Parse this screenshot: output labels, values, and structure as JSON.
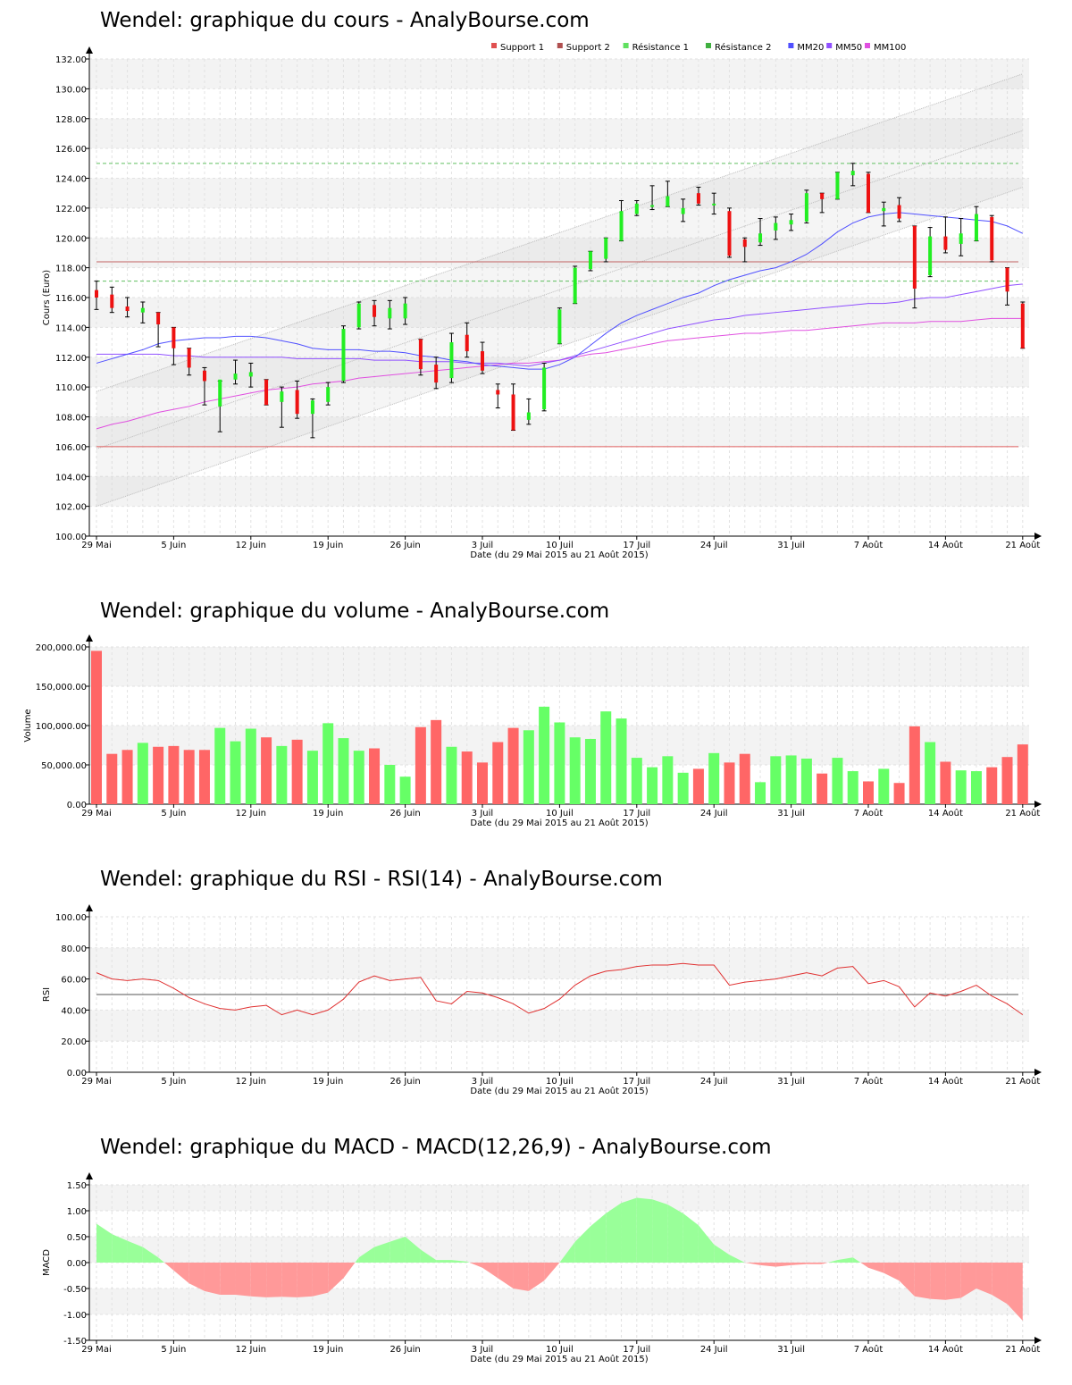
{
  "chart_data": [
    {
      "type": "candlestick",
      "title": "Wendel: graphique du cours - AnalyBourse.com",
      "xlabel": "Date (du 29 Mai 2015 au 21 Août 2015)",
      "ylabel": "Cours (Euro)",
      "ylim": [
        100,
        132
      ],
      "yticks": [
        "100.00",
        "102.00",
        "104.00",
        "106.00",
        "108.00",
        "110.00",
        "112.00",
        "114.00",
        "116.00",
        "118.00",
        "120.00",
        "122.00",
        "124.00",
        "126.00",
        "128.00",
        "130.00",
        "132.00"
      ],
      "xticks": [
        {
          "i": 0,
          "label": "29 Mai"
        },
        {
          "i": 5,
          "label": "5 Juin"
        },
        {
          "i": 10,
          "label": "12 Juin"
        },
        {
          "i": 15,
          "label": "19 Juin"
        },
        {
          "i": 20,
          "label": "26 Juin"
        },
        {
          "i": 25,
          "label": "3 Juil"
        },
        {
          "i": 30,
          "label": "10 Juil"
        },
        {
          "i": 35,
          "label": "17 Juil"
        },
        {
          "i": 40,
          "label": "24 Juil"
        },
        {
          "i": 45,
          "label": "31 Juil"
        },
        {
          "i": 50,
          "label": "7 Août"
        },
        {
          "i": 55,
          "label": "14 Août"
        },
        {
          "i": 60,
          "label": "21 Août"
        }
      ],
      "legend": [
        {
          "name": "Support 1",
          "color": "#e05050"
        },
        {
          "name": "Support 2",
          "color": "#b05050"
        },
        {
          "name": "Résistance 1",
          "color": "#60e060"
        },
        {
          "name": "Résistance 2",
          "color": "#40b040"
        },
        {
          "name": "MM20",
          "color": "#5050ff"
        },
        {
          "name": "MM50",
          "color": "#9050ff"
        },
        {
          "name": "MM100",
          "color": "#e050e0"
        }
      ],
      "levels": {
        "support1": 106.0,
        "support2": 118.4,
        "resistance1": 117.1,
        "resistance2": 125.0
      },
      "channel": {
        "upper": [
          109.7,
          131.0
        ],
        "lower": [
          102.0,
          123.4
        ],
        "mid": [
          105.85,
          127.2
        ]
      },
      "candles": [
        {
          "o": 116.5,
          "h": 117.1,
          "l": 115.2,
          "c": 116.0
        },
        {
          "o": 116.2,
          "h": 116.7,
          "l": 115.0,
          "c": 115.3
        },
        {
          "o": 115.4,
          "h": 116.0,
          "l": 114.7,
          "c": 115.1
        },
        {
          "o": 115.0,
          "h": 115.7,
          "l": 114.3,
          "c": 115.3
        },
        {
          "o": 115.0,
          "h": 115.0,
          "l": 112.7,
          "c": 114.2
        },
        {
          "o": 114.0,
          "h": 114.0,
          "l": 111.5,
          "c": 112.6
        },
        {
          "o": 112.6,
          "h": 112.6,
          "l": 110.8,
          "c": 111.3
        },
        {
          "o": 111.1,
          "h": 111.3,
          "l": 108.8,
          "c": 110.4
        },
        {
          "o": 108.7,
          "h": 110.4,
          "l": 107.0,
          "c": 110.5
        },
        {
          "o": 110.5,
          "h": 111.8,
          "l": 110.2,
          "c": 110.9
        },
        {
          "o": 110.7,
          "h": 111.6,
          "l": 110.0,
          "c": 111.0
        },
        {
          "o": 110.5,
          "h": 110.5,
          "l": 108.8,
          "c": 108.8
        },
        {
          "o": 109.0,
          "h": 110.0,
          "l": 107.3,
          "c": 109.7
        },
        {
          "o": 109.8,
          "h": 110.4,
          "l": 107.9,
          "c": 108.2
        },
        {
          "o": 108.2,
          "h": 109.2,
          "l": 106.6,
          "c": 109.1
        },
        {
          "o": 109.0,
          "h": 110.3,
          "l": 108.8,
          "c": 110.0
        },
        {
          "o": 110.4,
          "h": 114.1,
          "l": 110.3,
          "c": 113.9
        },
        {
          "o": 114.0,
          "h": 115.7,
          "l": 113.9,
          "c": 115.6
        },
        {
          "o": 115.5,
          "h": 115.8,
          "l": 114.1,
          "c": 114.7
        },
        {
          "o": 114.6,
          "h": 115.8,
          "l": 113.9,
          "c": 115.3
        },
        {
          "o": 114.6,
          "h": 116.0,
          "l": 114.2,
          "c": 115.6
        },
        {
          "o": 113.2,
          "h": 113.2,
          "l": 110.8,
          "c": 111.2
        },
        {
          "o": 111.5,
          "h": 112.0,
          "l": 109.9,
          "c": 110.3
        },
        {
          "o": 110.6,
          "h": 113.6,
          "l": 110.3,
          "c": 113.0
        },
        {
          "o": 113.5,
          "h": 114.3,
          "l": 112.0,
          "c": 112.4
        },
        {
          "o": 112.4,
          "h": 113.0,
          "l": 110.9,
          "c": 111.1
        },
        {
          "o": 109.8,
          "h": 110.2,
          "l": 108.6,
          "c": 109.5
        },
        {
          "o": 109.5,
          "h": 110.2,
          "l": 107.1,
          "c": 107.1
        },
        {
          "o": 107.8,
          "h": 109.2,
          "l": 107.5,
          "c": 108.3
        },
        {
          "o": 108.5,
          "h": 111.6,
          "l": 108.4,
          "c": 111.3
        },
        {
          "o": 112.9,
          "h": 115.3,
          "l": 112.9,
          "c": 115.2
        },
        {
          "o": 115.6,
          "h": 118.1,
          "l": 115.6,
          "c": 118.0
        },
        {
          "o": 117.9,
          "h": 119.1,
          "l": 117.8,
          "c": 119.1
        },
        {
          "o": 118.6,
          "h": 120.0,
          "l": 118.4,
          "c": 120.0
        },
        {
          "o": 119.8,
          "h": 122.5,
          "l": 119.8,
          "c": 121.8
        },
        {
          "o": 121.6,
          "h": 122.5,
          "l": 121.5,
          "c": 122.3
        },
        {
          "o": 122.2,
          "h": 123.5,
          "l": 121.9,
          "c": 122.2
        },
        {
          "o": 122.1,
          "h": 123.8,
          "l": 122.1,
          "c": 122.8
        },
        {
          "o": 121.6,
          "h": 122.6,
          "l": 121.1,
          "c": 122.0
        },
        {
          "o": 123.0,
          "h": 123.4,
          "l": 122.2,
          "c": 122.3
        },
        {
          "o": 122.3,
          "h": 123.0,
          "l": 121.6,
          "c": 122.3
        },
        {
          "o": 121.8,
          "h": 122.0,
          "l": 118.7,
          "c": 118.8
        },
        {
          "o": 119.9,
          "h": 120.0,
          "l": 118.4,
          "c": 119.4
        },
        {
          "o": 119.7,
          "h": 121.3,
          "l": 119.5,
          "c": 120.3
        },
        {
          "o": 120.5,
          "h": 121.4,
          "l": 119.9,
          "c": 121.0
        },
        {
          "o": 120.9,
          "h": 121.6,
          "l": 120.5,
          "c": 121.2
        },
        {
          "o": 121.1,
          "h": 123.2,
          "l": 121.0,
          "c": 123.0
        },
        {
          "o": 123.0,
          "h": 123.0,
          "l": 121.7,
          "c": 122.6
        },
        {
          "o": 122.6,
          "h": 124.4,
          "l": 122.6,
          "c": 124.4
        },
        {
          "o": 124.2,
          "h": 125.0,
          "l": 123.5,
          "c": 124.5
        },
        {
          "o": 124.3,
          "h": 124.4,
          "l": 121.7,
          "c": 121.7
        },
        {
          "o": 121.8,
          "h": 122.4,
          "l": 120.8,
          "c": 122.0
        },
        {
          "o": 122.2,
          "h": 122.7,
          "l": 121.1,
          "c": 121.3
        },
        {
          "o": 120.8,
          "h": 120.8,
          "l": 115.3,
          "c": 116.6
        },
        {
          "o": 117.5,
          "h": 120.7,
          "l": 117.4,
          "c": 120.1
        },
        {
          "o": 120.1,
          "h": 121.4,
          "l": 119.0,
          "c": 119.2
        },
        {
          "o": 119.6,
          "h": 121.3,
          "l": 118.8,
          "c": 120.3
        },
        {
          "o": 119.8,
          "h": 122.1,
          "l": 119.8,
          "c": 121.6
        },
        {
          "o": 121.4,
          "h": 121.5,
          "l": 118.4,
          "c": 118.5
        },
        {
          "o": 118.0,
          "h": 118.0,
          "l": 115.5,
          "c": 116.4
        },
        {
          "o": 115.6,
          "h": 115.7,
          "l": 112.6,
          "c": 112.6
        }
      ],
      "mm20": [
        111.6,
        111.9,
        112.2,
        112.5,
        112.9,
        113.1,
        113.2,
        113.3,
        113.3,
        113.4,
        113.4,
        113.3,
        113.1,
        112.9,
        112.6,
        112.5,
        112.5,
        112.5,
        112.4,
        112.4,
        112.3,
        112.1,
        112.0,
        111.8,
        111.7,
        111.5,
        111.4,
        111.3,
        111.2,
        111.2,
        111.5,
        112.0,
        112.8,
        113.6,
        114.3,
        114.8,
        115.2,
        115.6,
        116.0,
        116.3,
        116.8,
        117.2,
        117.5,
        117.8,
        118.0,
        118.4,
        118.9,
        119.6,
        120.4,
        121.0,
        121.4,
        121.6,
        121.7,
        121.6,
        121.5,
        121.4,
        121.3,
        121.2,
        121.1,
        120.8,
        120.3
      ],
      "mm50": [
        112.2,
        112.2,
        112.2,
        112.2,
        112.2,
        112.1,
        112.1,
        112.0,
        112.0,
        112.0,
        112.0,
        112.0,
        112.0,
        111.9,
        111.9,
        111.9,
        111.9,
        111.9,
        111.8,
        111.8,
        111.8,
        111.7,
        111.7,
        111.7,
        111.6,
        111.6,
        111.6,
        111.5,
        111.4,
        111.6,
        111.8,
        112.1,
        112.4,
        112.7,
        113.0,
        113.3,
        113.6,
        113.9,
        114.1,
        114.3,
        114.5,
        114.6,
        114.8,
        114.9,
        115.0,
        115.1,
        115.2,
        115.3,
        115.4,
        115.5,
        115.6,
        115.6,
        115.7,
        115.9,
        116.0,
        116.0,
        116.2,
        116.4,
        116.6,
        116.8,
        116.9
      ],
      "mm100": [
        107.2,
        107.5,
        107.7,
        108.0,
        108.3,
        108.5,
        108.7,
        109.0,
        109.2,
        109.4,
        109.6,
        109.8,
        109.9,
        110.0,
        110.2,
        110.3,
        110.4,
        110.6,
        110.7,
        110.8,
        110.9,
        111.0,
        111.1,
        111.2,
        111.3,
        111.4,
        111.5,
        111.6,
        111.6,
        111.7,
        111.8,
        112.0,
        112.2,
        112.3,
        112.5,
        112.7,
        112.9,
        113.1,
        113.2,
        113.3,
        113.4,
        113.5,
        113.6,
        113.6,
        113.7,
        113.8,
        113.8,
        113.9,
        114.0,
        114.1,
        114.2,
        114.3,
        114.3,
        114.3,
        114.4,
        114.4,
        114.4,
        114.5,
        114.6,
        114.6,
        114.6
      ]
    },
    {
      "type": "bar",
      "title": "Wendel: graphique du volume - AnalyBourse.com",
      "xlabel": "Date (du 29 Mai 2015 au 21 Août 2015)",
      "ylabel": "Volume",
      "ylim": [
        0,
        200000
      ],
      "yticks": [
        "0.00",
        "50,000.00",
        "100,000.00",
        "150,000.00",
        "200,000.00"
      ],
      "values": [
        195000,
        64000,
        69000,
        78000,
        73000,
        74000,
        69000,
        69000,
        97000,
        80000,
        96000,
        85000,
        74000,
        82000,
        68000,
        103000,
        84000,
        68000,
        71000,
        50000,
        35000,
        98000,
        107000,
        73000,
        67000,
        53000,
        79000,
        97000,
        94000,
        124000,
        104000,
        85000,
        83000,
        118000,
        109000,
        59000,
        47000,
        61000,
        40000,
        45000,
        65000,
        53000,
        64000,
        28000,
        61000,
        62000,
        58000,
        39000,
        59000,
        42000,
        29000,
        45000,
        27000,
        99000,
        79000,
        54000,
        43000,
        42000,
        47000,
        60000,
        76000
      ],
      "colors_by": "candle direction (green up, red down)"
    },
    {
      "type": "line",
      "title": "Wendel: graphique du RSI - RSI(14) - AnalyBourse.com",
      "xlabel": "Date (du 29 Mai 2015 au 21 Août 2015)",
      "ylabel": "RSI",
      "ylim": [
        0,
        100
      ],
      "yticks": [
        "0.00",
        "20.00",
        "40.00",
        "60.00",
        "80.00",
        "100.00"
      ],
      "reference": 50,
      "values": [
        64,
        60,
        59,
        60,
        59,
        54,
        48,
        44,
        41,
        40,
        42,
        43,
        37,
        40,
        37,
        40,
        47,
        58,
        62,
        59,
        60,
        61,
        46,
        44,
        52,
        51,
        48,
        44,
        38,
        41,
        47,
        56,
        62,
        65,
        66,
        68,
        69,
        69,
        70,
        69,
        69,
        56,
        58,
        59,
        60,
        62,
        64,
        62,
        67,
        68,
        57,
        59,
        55,
        42,
        51,
        49,
        52,
        56,
        49,
        44,
        37
      ]
    },
    {
      "type": "area",
      "title": "Wendel: graphique du MACD - MACD(12,26,9) - AnalyBourse.com",
      "xlabel": "Date (du 29 Mai 2015 au 21 Août 2015)",
      "ylabel": "MACD",
      "ylim": [
        -1.5,
        1.5
      ],
      "yticks": [
        "-1.50",
        "-1.00",
        "-0.50",
        "0.00",
        "0.50",
        "1.00",
        "1.50"
      ],
      "values": [
        0.75,
        0.55,
        0.42,
        0.3,
        0.1,
        -0.15,
        -0.4,
        -0.55,
        -0.62,
        -0.62,
        -0.65,
        -0.67,
        -0.66,
        -0.67,
        -0.65,
        -0.58,
        -0.3,
        0.1,
        0.3,
        0.4,
        0.5,
        0.25,
        0.05,
        0.05,
        0.02,
        -0.1,
        -0.3,
        -0.5,
        -0.55,
        -0.35,
        0.0,
        0.4,
        0.7,
        0.95,
        1.15,
        1.25,
        1.22,
        1.12,
        0.95,
        0.72,
        0.35,
        0.15,
        0.0,
        -0.05,
        -0.08,
        -0.05,
        -0.03,
        -0.03,
        0.05,
        0.1,
        -0.1,
        -0.2,
        -0.35,
        -0.65,
        -0.7,
        -0.72,
        -0.68,
        -0.5,
        -0.62,
        -0.8,
        -1.12
      ]
    }
  ]
}
